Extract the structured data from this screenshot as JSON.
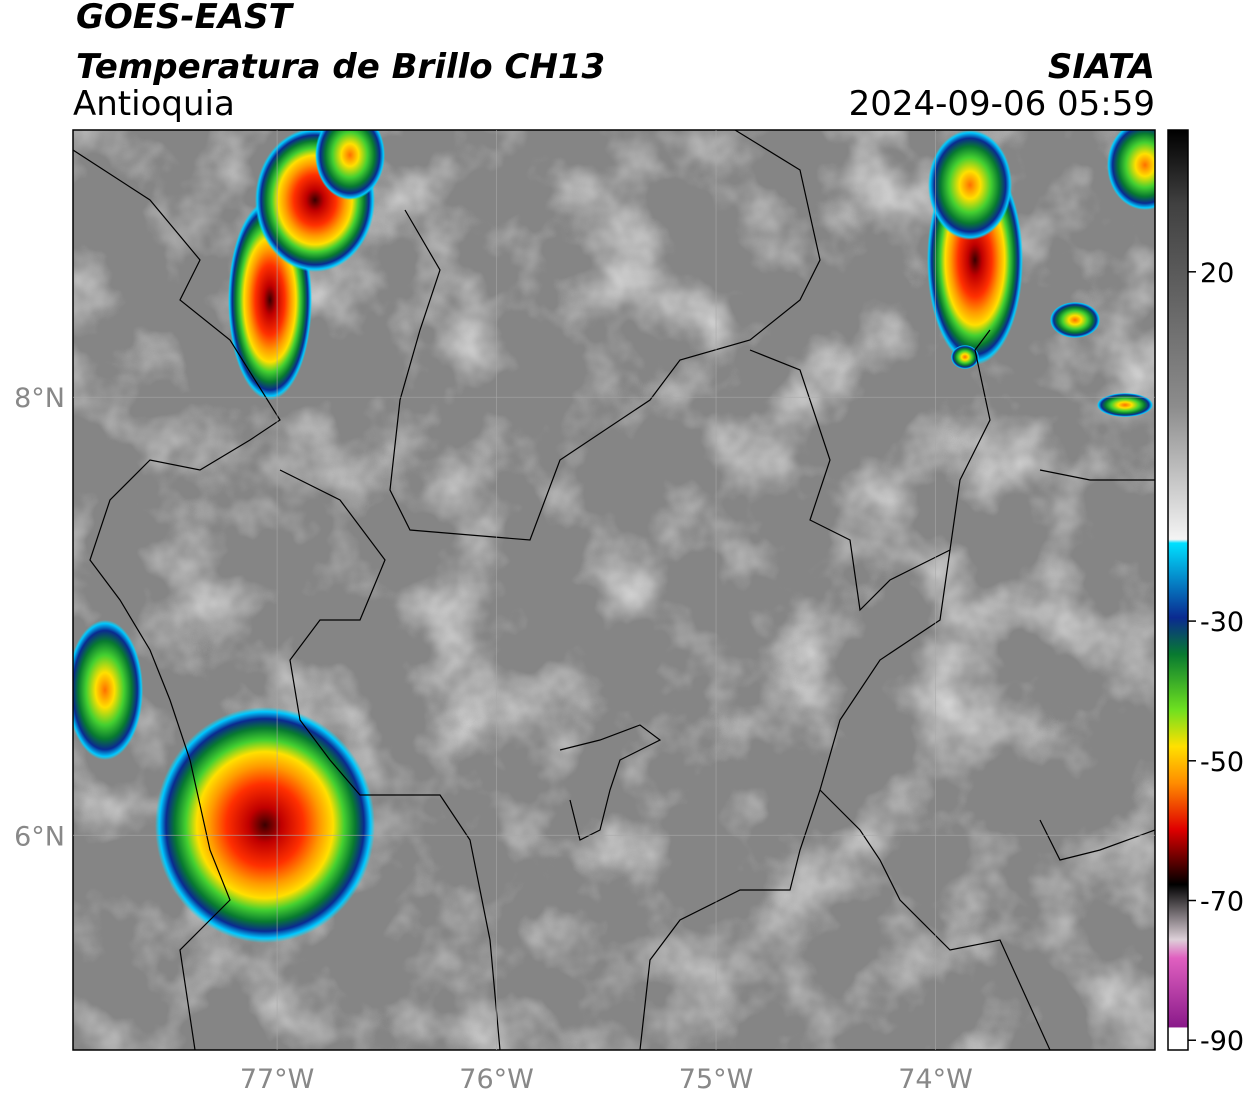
{
  "header": {
    "title": "GOES-EAST",
    "subtitle": "Temperatura de Brillo CH13",
    "source": "SIATA",
    "region": "Antioquia",
    "datetime": "2024-09-06 05:59"
  },
  "map": {
    "xlim": [
      -77.93,
      -73
    ],
    "ylim": [
      5.02,
      9.22
    ],
    "xticks": [
      {
        "value": -77,
        "label": "77°W"
      },
      {
        "value": -76,
        "label": "76°W"
      },
      {
        "value": -75,
        "label": "75°W"
      },
      {
        "value": -74,
        "label": "74°W"
      }
    ],
    "yticks": [
      {
        "value": 8,
        "label": "8°N"
      },
      {
        "value": 6,
        "label": "6°N"
      }
    ],
    "grid": true
  },
  "colorbar": {
    "lim": [
      -91.4,
      40.3
    ],
    "ticks": [
      20,
      -30,
      -50,
      -70,
      -90
    ]
  }
}
